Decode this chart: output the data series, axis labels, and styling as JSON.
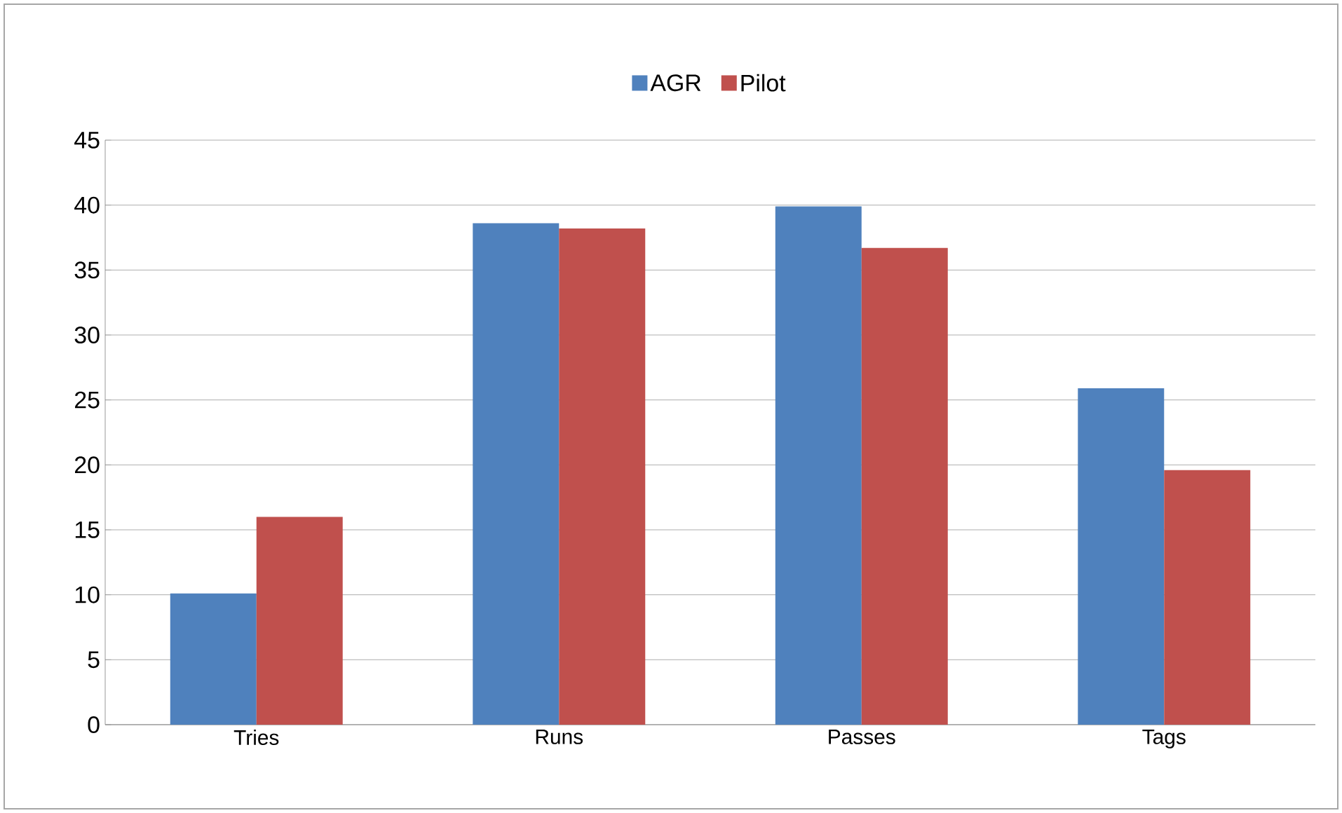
{
  "chart_data": {
    "type": "bar",
    "categories": [
      "Tries",
      "Runs",
      "Passes",
      "Tags"
    ],
    "series": [
      {
        "name": "AGR",
        "color": "#4f81bd",
        "values": [
          10.1,
          38.6,
          39.9,
          25.9
        ]
      },
      {
        "name": "Pilot",
        "color": "#c0504d",
        "values": [
          16.0,
          38.2,
          36.7,
          19.6
        ]
      }
    ],
    "ylim": [
      0,
      45
    ],
    "yticks": [
      0,
      5,
      10,
      15,
      20,
      25,
      30,
      35,
      40,
      45
    ],
    "grid": "y",
    "legend": "top"
  }
}
